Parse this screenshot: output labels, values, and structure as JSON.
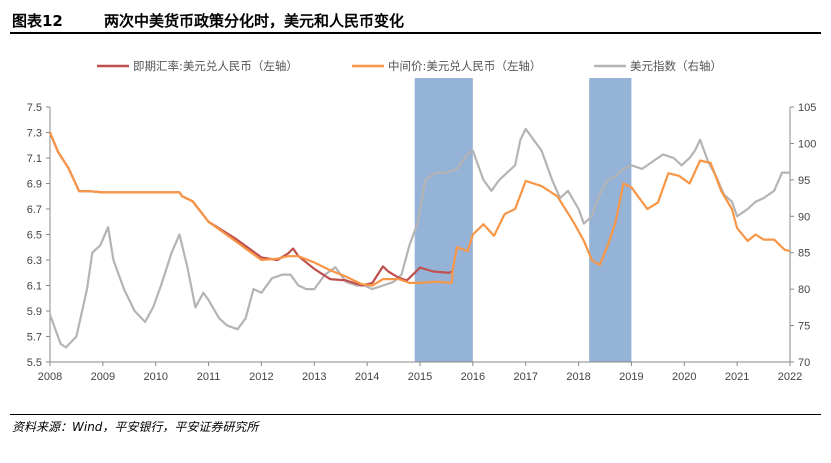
{
  "header": {
    "figure_number": "图表12",
    "title": "两次中美货币政策分化时，美元和人民币变化"
  },
  "footer": {
    "source": "资料来源：Wind，平安银行，平安证券研究所"
  },
  "colors": {
    "spot": "#c0504d",
    "mid": "#f79646",
    "usd_index": "#b4b4b4",
    "shade": "#95b3d7",
    "axis": "#888888"
  },
  "chart_data": {
    "type": "line",
    "title": "两次中美货币政策分化时，美元和人民币变化",
    "x_ticks": [
      "2008",
      "2009",
      "2010",
      "2011",
      "2012",
      "2013",
      "2014",
      "2015",
      "2016",
      "2017",
      "2018",
      "2019",
      "2020",
      "2021",
      "2022"
    ],
    "xlim": [
      2008,
      2022
    ],
    "y_left": {
      "ticks": [
        "5.5",
        "5.7",
        "5.9",
        "6.1",
        "6.3",
        "6.5",
        "6.7",
        "6.9",
        "7.1",
        "7.3",
        "7.5"
      ],
      "range": [
        5.5,
        7.5
      ]
    },
    "y_right": {
      "ticks": [
        "70",
        "75",
        "80",
        "85",
        "90",
        "95",
        "100",
        "105"
      ],
      "range": [
        70,
        105
      ]
    },
    "grid": false,
    "legend_position": "top",
    "shaded_periods": [
      [
        2014.9,
        2016.0
      ],
      [
        2018.2,
        2019.0
      ]
    ],
    "series": [
      {
        "name": "即期汇率:美元兑人民币（左轴）",
        "axis": "left",
        "x": [
          2008.0,
          2008.15,
          2008.35,
          2008.55,
          2008.75,
          2009.0,
          2009.5,
          2010.0,
          2010.45,
          2010.5,
          2010.7,
          2011.0,
          2011.5,
          2012.0,
          2012.3,
          2012.5,
          2012.6,
          2012.7,
          2013.0,
          2013.3,
          2013.6,
          2013.9,
          2014.1,
          2014.3,
          2014.4,
          2014.6,
          2014.75,
          2014.9,
          2015.0,
          2015.25,
          2015.55,
          2015.6
        ],
        "y": [
          7.3,
          7.15,
          7.02,
          6.84,
          6.84,
          6.83,
          6.83,
          6.83,
          6.83,
          6.8,
          6.76,
          6.6,
          6.47,
          6.32,
          6.3,
          6.35,
          6.39,
          6.33,
          6.23,
          6.15,
          6.14,
          6.1,
          6.12,
          6.25,
          6.21,
          6.16,
          6.14,
          6.2,
          6.24,
          6.21,
          6.2,
          6.21
        ]
      },
      {
        "name": "中间价:美元兑人民币（左轴）",
        "axis": "left",
        "x": [
          2008.0,
          2008.15,
          2008.35,
          2008.55,
          2008.75,
          2009.0,
          2009.5,
          2010.0,
          2010.45,
          2010.5,
          2010.7,
          2011.0,
          2011.5,
          2012.0,
          2012.3,
          2012.5,
          2012.7,
          2013.0,
          2013.3,
          2013.6,
          2013.9,
          2014.1,
          2014.3,
          2014.4,
          2014.6,
          2014.8,
          2015.0,
          2015.3,
          2015.6,
          2015.62,
          2015.7,
          2015.9,
          2016.0,
          2016.2,
          2016.4,
          2016.6,
          2016.8,
          2017.0,
          2017.3,
          2017.6,
          2017.9,
          2018.1,
          2018.25,
          2018.4,
          2018.55,
          2018.7,
          2018.85,
          2019.0,
          2019.3,
          2019.5,
          2019.7,
          2019.9,
          2020.1,
          2020.3,
          2020.5,
          2020.7,
          2020.9,
          2021.0,
          2021.2,
          2021.35,
          2021.5,
          2021.7,
          2021.9,
          2022.0
        ],
        "y": [
          7.3,
          7.15,
          7.02,
          6.84,
          6.84,
          6.83,
          6.83,
          6.83,
          6.83,
          6.8,
          6.76,
          6.6,
          6.45,
          6.3,
          6.31,
          6.33,
          6.33,
          6.28,
          6.22,
          6.17,
          6.11,
          6.1,
          6.15,
          6.15,
          6.15,
          6.12,
          6.12,
          6.13,
          6.12,
          6.23,
          6.4,
          6.37,
          6.5,
          6.58,
          6.49,
          6.66,
          6.7,
          6.92,
          6.88,
          6.8,
          6.6,
          6.45,
          6.3,
          6.26,
          6.41,
          6.6,
          6.9,
          6.87,
          6.7,
          6.75,
          6.98,
          6.96,
          6.9,
          7.08,
          7.06,
          6.84,
          6.7,
          6.55,
          6.45,
          6.5,
          6.46,
          6.46,
          6.38,
          6.37
        ]
      },
      {
        "name": "美元指数（右轴）",
        "axis": "right",
        "x": [
          2008.0,
          2008.1,
          2008.2,
          2008.3,
          2008.5,
          2008.7,
          2008.8,
          2008.95,
          2009.1,
          2009.2,
          2009.4,
          2009.6,
          2009.8,
          2009.95,
          2010.1,
          2010.3,
          2010.45,
          2010.6,
          2010.75,
          2010.9,
          2011.0,
          2011.2,
          2011.35,
          2011.55,
          2011.7,
          2011.85,
          2012.0,
          2012.2,
          2012.4,
          2012.55,
          2012.7,
          2012.85,
          2013.0,
          2013.2,
          2013.4,
          2013.6,
          2013.8,
          2013.95,
          2014.1,
          2014.3,
          2014.5,
          2014.65,
          2014.8,
          2014.95,
          2015.1,
          2015.3,
          2015.5,
          2015.7,
          2015.9,
          2016.0,
          2016.2,
          2016.35,
          2016.5,
          2016.65,
          2016.8,
          2016.9,
          2017.0,
          2017.15,
          2017.3,
          2017.5,
          2017.65,
          2017.8,
          2018.0,
          2018.1,
          2018.25,
          2018.4,
          2018.55,
          2018.7,
          2018.85,
          2019.0,
          2019.2,
          2019.4,
          2019.6,
          2019.8,
          2019.95,
          2020.1,
          2020.2,
          2020.3,
          2020.45,
          2020.6,
          2020.75,
          2020.9,
          2021.0,
          2021.2,
          2021.35,
          2021.5,
          2021.7,
          2021.85,
          2022.0
        ],
        "y": [
          76.5,
          74.5,
          72.5,
          72.0,
          73.5,
          80.0,
          85.0,
          86.0,
          88.5,
          84.0,
          80.0,
          77.0,
          75.5,
          77.5,
          80.5,
          85.0,
          87.5,
          83.0,
          77.5,
          79.5,
          78.5,
          76.0,
          75.0,
          74.5,
          76.0,
          80.0,
          79.5,
          81.5,
          82.0,
          82.0,
          80.5,
          80.0,
          80.0,
          82.0,
          83.0,
          81.0,
          80.5,
          80.5,
          80.0,
          80.5,
          81.0,
          82.0,
          86.0,
          89.0,
          95.0,
          96.0,
          96.0,
          96.5,
          98.5,
          99.0,
          95.0,
          93.5,
          95.0,
          96.0,
          97.0,
          100.5,
          102.0,
          100.5,
          99.0,
          95.0,
          92.5,
          93.5,
          91.0,
          89.0,
          90.0,
          93.0,
          95.0,
          95.5,
          96.5,
          97.0,
          96.5,
          97.5,
          98.5,
          98.0,
          97.0,
          98.0,
          99.0,
          100.5,
          97.5,
          95.5,
          93.0,
          92.0,
          90.0,
          91.0,
          92.0,
          92.5,
          93.5,
          96.0,
          96.0
        ]
      }
    ]
  }
}
